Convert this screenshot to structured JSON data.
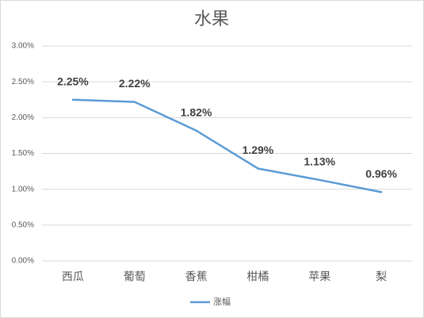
{
  "chart_data": {
    "type": "line",
    "title": "水果",
    "categories": [
      "西瓜",
      "葡萄",
      "香蕉",
      "柑橘",
      "苹果",
      "梨"
    ],
    "series": [
      {
        "name": "涨幅",
        "color": "#5b9bd5",
        "values": [
          2.25,
          2.22,
          1.82,
          1.29,
          1.13,
          0.96
        ],
        "value_labels": [
          "2.25%",
          "2.22%",
          "1.82%",
          "1.29%",
          "1.13%",
          "0.96%"
        ]
      }
    ],
    "ylim": [
      0,
      3
    ],
    "yticks": [
      {
        "value": 0,
        "label": "0.00%"
      },
      {
        "value": 0.5,
        "label": "0.50%"
      },
      {
        "value": 1,
        "label": "1.00%"
      },
      {
        "value": 1.5,
        "label": "1.50%"
      },
      {
        "value": 2,
        "label": "2.00%"
      },
      {
        "value": 2.5,
        "label": "2.50%"
      },
      {
        "value": 3,
        "label": "3.00%"
      }
    ],
    "grid": true,
    "legend": "bottom"
  }
}
